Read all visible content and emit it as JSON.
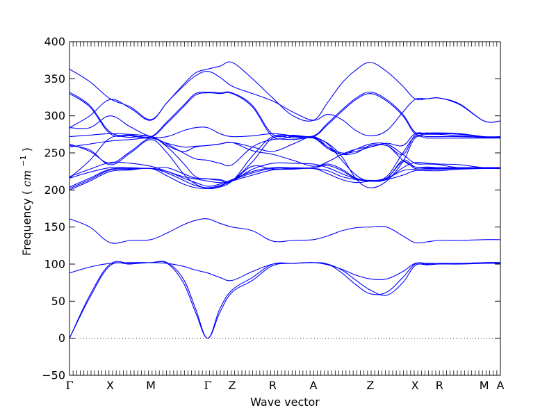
{
  "chart_data": {
    "type": "line",
    "xlabel": "Wave vector",
    "ylabel": "Frequency",
    "ylabel_unit_prefix": "(",
    "ylabel_unit": "cm",
    "ylabel_unit_exp": "−1",
    "ylabel_unit_suffix": ")",
    "ylim": [
      -50,
      400
    ],
    "yticks": [
      -50,
      0,
      50,
      100,
      150,
      200,
      250,
      300,
      350,
      400
    ],
    "ytick_labels": [
      "−50",
      "0",
      "50",
      "100",
      "150",
      "200",
      "250",
      "300",
      "350",
      "400"
    ],
    "x_range": [
      0,
      10.6
    ],
    "kpoints": [
      {
        "label": "Γ",
        "x": 0.0
      },
      {
        "label": "X",
        "x": 1.0
      },
      {
        "label": "M",
        "x": 2.0
      },
      {
        "label": "Γ",
        "x": 3.4
      },
      {
        "label": "Z",
        "x": 4.0
      },
      {
        "label": "R",
        "x": 5.0
      },
      {
        "label": "A",
        "x": 6.0
      },
      {
        "label": "Z",
        "x": 7.4
      },
      {
        "label": "X",
        "x": 8.5
      },
      {
        "label": "R",
        "x": 9.1
      },
      {
        "label": "M",
        "x": 10.2
      },
      {
        "label": "A",
        "x": 10.6
      }
    ],
    "zero_line": 0,
    "line_color": "#0000ff",
    "band_x": [
      0.0,
      0.5,
      1.0,
      1.5,
      2.0,
      2.4,
      2.8,
      3.1,
      3.4,
      3.7,
      4.0,
      4.5,
      5.0,
      5.5,
      6.0,
      6.35,
      6.7,
      7.05,
      7.4,
      7.8,
      8.2,
      8.5,
      8.8,
      9.1,
      9.6,
      10.2,
      10.6
    ],
    "bands": [
      {
        "values": [
          0,
          55,
          98,
          100,
          102,
          101,
          75,
          35,
          0,
          35,
          62,
          78,
          98,
          101,
          102,
          100,
          92,
          78,
          65,
          58,
          75,
          98,
          99,
          100,
          100,
          101,
          101
        ]
      },
      {
        "values": [
          0,
          58,
          100,
          101,
          102,
          102,
          80,
          40,
          0,
          40,
          65,
          82,
          100,
          101,
          102,
          100,
          88,
          72,
          60,
          62,
          82,
          100,
          100,
          101,
          101,
          102,
          102
        ]
      },
      {
        "values": [
          88,
          96,
          101,
          102,
          102,
          101,
          97,
          92,
          88,
          82,
          78,
          90,
          100,
          101,
          102,
          99,
          93,
          85,
          80,
          80,
          90,
          101,
          101,
          101,
          101,
          102,
          102
        ]
      },
      {
        "values": [
          161,
          150,
          129,
          132,
          133,
          142,
          153,
          159,
          161,
          155,
          150,
          145,
          131,
          132,
          133,
          138,
          145,
          149,
          150,
          150,
          138,
          129,
          130,
          132,
          132,
          133,
          133
        ]
      },
      {
        "values": [
          200,
          212,
          225,
          227,
          229,
          219,
          208,
          203,
          202,
          205,
          212,
          220,
          227,
          228,
          229,
          222,
          214,
          210,
          212,
          214,
          220,
          226,
          226,
          226,
          228,
          229,
          229
        ]
      },
      {
        "values": [
          202,
          214,
          227,
          228,
          229,
          223,
          213,
          206,
          203,
          206,
          213,
          223,
          229,
          229,
          229,
          226,
          218,
          214,
          212,
          216,
          226,
          228,
          228,
          228,
          229,
          229,
          229
        ]
      },
      {
        "values": [
          204,
          216,
          228,
          229,
          229,
          225,
          216,
          210,
          205,
          208,
          214,
          225,
          230,
          230,
          230,
          235,
          228,
          216,
          213,
          216,
          238,
          229,
          229,
          229,
          229,
          230,
          230
        ]
      },
      {
        "values": [
          216,
          224,
          230,
          230,
          229,
          230,
          222,
          216,
          215,
          214,
          212,
          232,
          228,
          229,
          230,
          233,
          226,
          215,
          212,
          215,
          240,
          231,
          231,
          230,
          230,
          230,
          230
        ]
      },
      {
        "values": [
          218,
          228,
          237,
          236,
          232,
          225,
          218,
          215,
          212,
          210,
          212,
          228,
          236,
          236,
          235,
          230,
          222,
          215,
          212,
          214,
          230,
          237,
          236,
          235,
          234,
          230,
          230
        ]
      },
      {
        "values": [
          260,
          254,
          234,
          250,
          268,
          250,
          222,
          208,
          202,
          204,
          212,
          238,
          270,
          270,
          270,
          263,
          245,
          215,
          203,
          212,
          238,
          270,
          270,
          270,
          270,
          270,
          270
        ]
      },
      {
        "values": [
          262,
          252,
          236,
          252,
          270,
          258,
          236,
          218,
          215,
          213,
          212,
          246,
          272,
          272,
          271,
          262,
          240,
          220,
          212,
          218,
          250,
          272,
          272,
          272,
          272,
          271,
          271
        ]
      },
      {
        "values": [
          272,
          274,
          276,
          275,
          272,
          262,
          250,
          242,
          240,
          236,
          234,
          258,
          268,
          268,
          270,
          258,
          250,
          252,
          258,
          263,
          260,
          276,
          276,
          276,
          276,
          271,
          271
        ]
      },
      {
        "values": [
          284,
          284,
          300,
          285,
          272,
          272,
          280,
          284,
          284,
          276,
          272,
          273,
          276,
          273,
          270,
          256,
          248,
          250,
          260,
          260,
          248,
          274,
          275,
          275,
          273,
          271,
          271
        ]
      },
      {
        "values": [
          216,
          240,
          270,
          271,
          272,
          260,
          252,
          258,
          260,
          262,
          264,
          253,
          248,
          240,
          232,
          238,
          248,
          255,
          258,
          260,
          240,
          231,
          230,
          230,
          230,
          230,
          230
        ]
      },
      {
        "values": [
          258,
          262,
          266,
          268,
          270,
          263,
          258,
          259,
          260,
          262,
          264,
          258,
          252,
          262,
          272,
          258,
          248,
          255,
          262,
          262,
          248,
          236,
          235,
          234,
          230,
          230,
          230
        ]
      },
      {
        "values": [
          330,
          312,
          276,
          273,
          271,
          290,
          312,
          328,
          331,
          330,
          330,
          312,
          272,
          272,
          272,
          288,
          306,
          322,
          330,
          320,
          300,
          276,
          276,
          276,
          275,
          271,
          271
        ]
      },
      {
        "values": [
          332,
          314,
          278,
          274,
          272,
          292,
          314,
          330,
          332,
          331,
          331,
          314,
          275,
          274,
          273,
          290,
          308,
          324,
          332,
          322,
          302,
          278,
          277,
          277,
          276,
          272,
          272
        ]
      },
      {
        "values": [
          363,
          346,
          323,
          312,
          295,
          318,
          342,
          358,
          363,
          367,
          372,
          350,
          324,
          300,
          294,
          318,
          344,
          362,
          372,
          360,
          340,
          323,
          323,
          324,
          315,
          293,
          293
        ]
      },
      {
        "values": [
          284,
          300,
          322,
          310,
          294,
          318,
          340,
          354,
          360,
          352,
          340,
          330,
          320,
          305,
          294,
          302,
          295,
          280,
          273,
          280,
          305,
          322,
          323,
          324,
          316,
          293,
          293
        ]
      }
    ]
  }
}
